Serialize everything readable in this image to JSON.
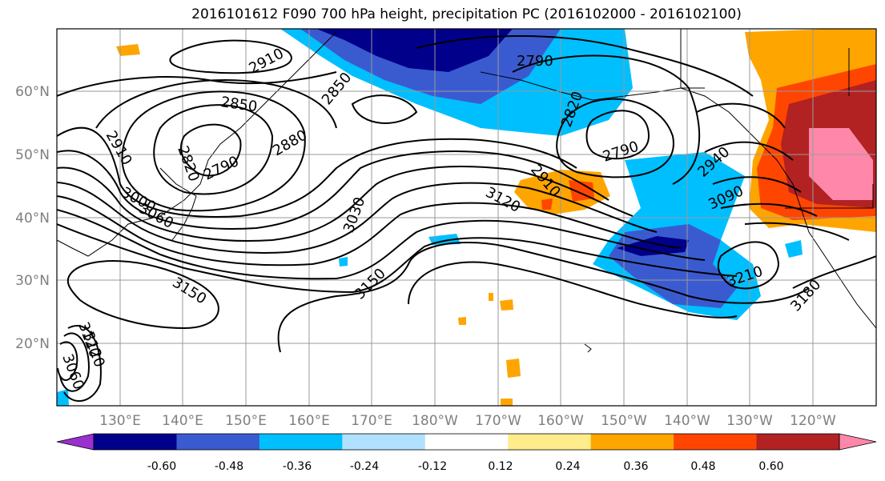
{
  "title": "2016101612 F090 700 hPa height, precipitation PC (2016102000 - 2016102100)",
  "map": {
    "lat_labels": [
      "20°N",
      "30°N",
      "40°N",
      "50°N",
      "60°N"
    ],
    "lon_labels": [
      "130°E",
      "140°E",
      "150°E",
      "160°E",
      "170°E",
      "180°W",
      "170°W",
      "160°W",
      "150°W",
      "140°W",
      "130°W",
      "120°W"
    ],
    "contour_labels": [
      "2910",
      "2850",
      "2850",
      "2820",
      "2790",
      "2880",
      "2910",
      "3000",
      "3060",
      "3030",
      "3150",
      "3150",
      "3120",
      "2790",
      "2820",
      "2790",
      "2910",
      "3120",
      "2940",
      "3090",
      "3210",
      "3180",
      "3120",
      "3060"
    ]
  },
  "colorbar": {
    "colors": [
      "#9b30d0",
      "#00008b",
      "#3a5bd0",
      "#00bfff",
      "#b0e2ff",
      "#ffffff",
      "#ffec8b",
      "#ffa500",
      "#ff4500",
      "#b22222",
      "#ff88aa"
    ],
    "tick_labels": [
      "-0.60",
      "-0.48",
      "-0.36",
      "-0.24",
      "-0.12",
      "0.12",
      "0.24",
      "0.36",
      "0.48",
      "0.60"
    ]
  }
}
